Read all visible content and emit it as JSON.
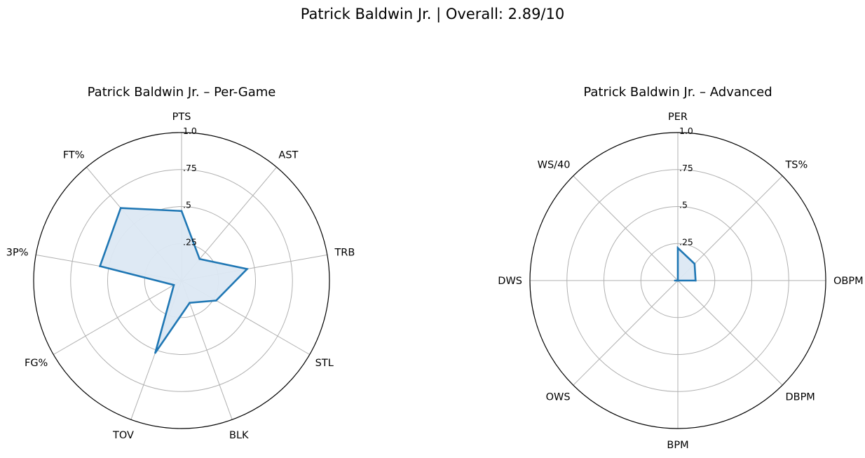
{
  "figure": {
    "title": "Patrick Baldwin Jr. | Overall: 2.89/10"
  },
  "colors": {
    "series": "#1f77b4",
    "fill": "#dce8f3",
    "grid": "#b0b0b0",
    "frame": "#000000"
  },
  "chart_data": [
    {
      "type": "radar",
      "title": "Patrick Baldwin Jr. – Per-Game",
      "rlim": [
        0,
        1
      ],
      "rticks": [
        0.25,
        0.5,
        0.75,
        1.0
      ],
      "rtick_labels": [
        ".25",
        ".5",
        ".75",
        "1.0"
      ],
      "grid": true,
      "categories": [
        "PTS",
        "AST",
        "TRB",
        "STL",
        "BLK",
        "TOV",
        "FG%",
        "3P%",
        "FT%"
      ],
      "values": [
        0.47,
        0.19,
        0.45,
        0.27,
        0.16,
        0.52,
        0.06,
        0.56,
        0.64
      ]
    },
    {
      "type": "radar",
      "title": "Patrick Baldwin Jr. – Advanced",
      "rlim": [
        0,
        1
      ],
      "rticks": [
        0.25,
        0.5,
        0.75,
        1.0
      ],
      "rtick_labels": [
        ".25",
        ".5",
        ".75",
        "1.0"
      ],
      "grid": true,
      "categories": [
        "PER",
        "TS%",
        "OBPM",
        "DBPM",
        "BPM",
        "OWS",
        "DWS",
        "WS/40"
      ],
      "values": [
        0.22,
        0.16,
        0.12,
        0.0,
        0.0,
        0.0,
        0.02,
        0.0
      ]
    }
  ]
}
